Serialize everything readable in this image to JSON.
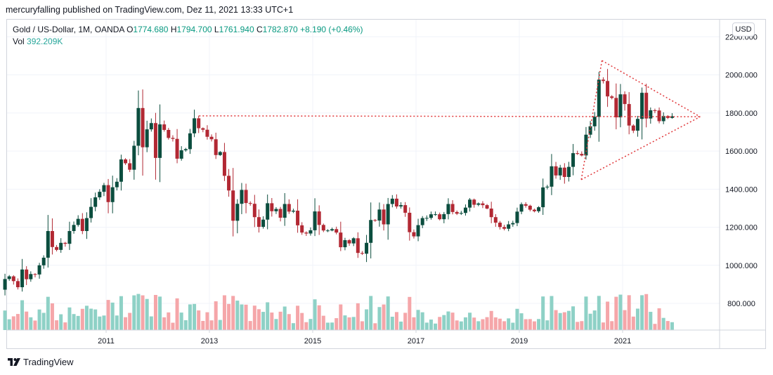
{
  "header": {
    "published": "mercuryfalling published on TradingView.com, Dez 11, 2021 13:33 UTC+1"
  },
  "legend": {
    "symbol": "Gold  / US-Dollar, 1M, OANDA",
    "open_label": "O",
    "open": "1774.680",
    "high_label": "H",
    "high": "1794.700",
    "low_label": "L",
    "low": "1761.940",
    "close_label": "C",
    "close": "1782.870",
    "change": "+8.190 (+0.46%)",
    "vol_label": "Vol",
    "vol_value": "392.209K"
  },
  "currency_badge": "USD",
  "brand": "TradingView",
  "colors": {
    "up": "#26a69a",
    "up_dark": "#0b4d3e",
    "down": "#b22833",
    "vol_up": "#8ed1c6",
    "vol_down": "#f5a6a9",
    "trendline": "#e0373a",
    "grid": "#f0f3fa"
  },
  "chart_data": {
    "type": "candlestick",
    "title": "Gold / US-Dollar, 1M, OANDA",
    "ylim": [
      660,
      2290
    ],
    "y_ticks": [
      "800.000",
      "1000.000",
      "1200.000",
      "1400.000",
      "1600.000",
      "1800.000",
      "2000.000",
      "2200.000"
    ],
    "x_ticks": [
      "2011",
      "2013",
      "2015",
      "2017",
      "2019",
      "2021"
    ],
    "candles_note": "monthly OHLC approximated from the chart, Jan 2009 to Dec 2021",
    "start": "2009-01",
    "monthly_closes": [
      928,
      942,
      917,
      885,
      978,
      927,
      954,
      952,
      1000,
      1040,
      1180,
      1096,
      1081,
      1118,
      1113,
      1180,
      1212,
      1244,
      1180,
      1248,
      1307,
      1357,
      1386,
      1421,
      1332,
      1410,
      1439,
      1556,
      1536,
      1502,
      1628,
      1826,
      1620,
      1714,
      1747,
      1564,
      1740,
      1711,
      1669,
      1664,
      1560,
      1604,
      1610,
      1693,
      1772,
      1720,
      1712,
      1675,
      1662,
      1579,
      1595,
      1470,
      1393,
      1234,
      1323,
      1396,
      1327,
      1323,
      1253,
      1202,
      1240,
      1326,
      1284,
      1296,
      1250,
      1322,
      1282,
      1287,
      1210,
      1172,
      1167,
      1184,
      1283,
      1212,
      1183,
      1183,
      1190,
      1172,
      1095,
      1132,
      1115,
      1142,
      1065,
      1061,
      1118,
      1238,
      1235,
      1293,
      1215,
      1322,
      1350,
      1309,
      1316,
      1276,
      1174,
      1152,
      1211,
      1248,
      1249,
      1268,
      1268,
      1242,
      1269,
      1322,
      1280,
      1271,
      1275,
      1303,
      1345,
      1318,
      1325,
      1316,
      1298,
      1253,
      1224,
      1201,
      1192,
      1215,
      1222,
      1282,
      1321,
      1313,
      1292,
      1284,
      1305,
      1409,
      1413,
      1520,
      1472,
      1513,
      1464,
      1517,
      1589,
      1585,
      1577,
      1686,
      1730,
      1780,
      1975,
      1968,
      1887,
      1879,
      1777,
      1898,
      1847,
      1734,
      1707,
      1769,
      1906,
      1771,
      1814,
      1813,
      1757,
      1784,
      1774,
      1783
    ],
    "volume_range_k": [
      80,
      1050
    ],
    "annotations": [
      "horizontal dotted line at ~1785 from late 2012 peak to apex",
      "symmetrical triangle: upper line from ~2075 (Aug 2020), lower line from ~1450 (Mar 2020), apex near 1785 (mid 2022)"
    ]
  }
}
